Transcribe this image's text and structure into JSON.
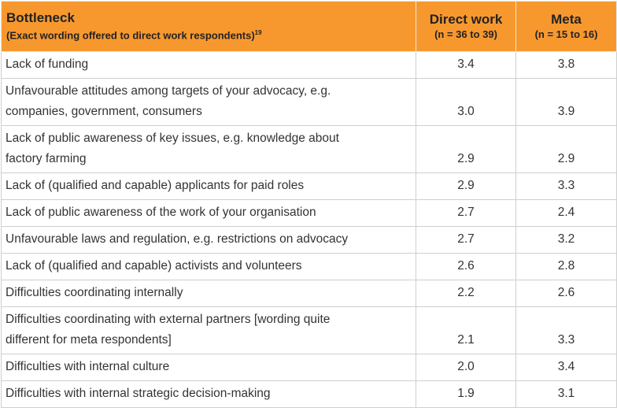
{
  "table": {
    "header": {
      "bottleneck": "Bottleneck",
      "bottleneck_note": "(Exact wording offered to direct work respondents)",
      "footnote": "19",
      "direct": "Direct work",
      "direct_note": "(n = 36 to 39)",
      "meta": "Meta",
      "meta_note": "(n = 15 to 16)"
    },
    "rows": [
      [
        [
          "Lack of funding"
        ],
        "3.4",
        "3.8"
      ],
      [
        [
          "Unfavourable attitudes among targets of your advocacy, e.g.",
          "companies, government, consumers"
        ],
        "3.0",
        "3.9"
      ],
      [
        [
          "Lack of public awareness of key issues, e.g. knowledge about",
          "factory farming"
        ],
        "2.9",
        "2.9"
      ],
      [
        [
          "Lack of (qualified and capable) applicants for paid roles"
        ],
        "2.9",
        "3.3"
      ],
      [
        [
          "Lack of public awareness of the work of your organisation"
        ],
        "2.7",
        "2.4"
      ],
      [
        [
          "Unfavourable laws and regulation, e.g. restrictions on advocacy"
        ],
        "2.7",
        "3.2"
      ],
      [
        [
          "Lack of (qualified and capable) activists and volunteers"
        ],
        "2.6",
        "2.8"
      ],
      [
        [
          "Difficulties coordinating internally"
        ],
        "2.2",
        "2.6"
      ],
      [
        [
          "Difficulties coordinating with external partners [wording quite",
          "different for meta respondents]"
        ],
        "2.1",
        "3.3"
      ],
      [
        [
          "Difficulties with internal culture"
        ],
        "2.0",
        "3.4"
      ],
      [
        [
          "Difficulties with internal strategic decision-making"
        ],
        "1.9",
        "3.1"
      ]
    ]
  }
}
